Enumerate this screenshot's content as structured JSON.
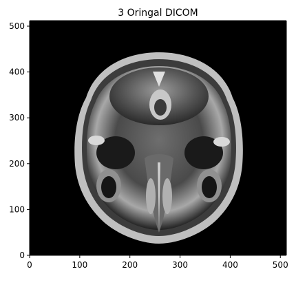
{
  "chart_data": {
    "type": "image",
    "title": "3  Oringal DICOM",
    "xlabel": "",
    "ylabel": "",
    "xlim": [
      0,
      512
    ],
    "ylim": [
      0,
      512
    ],
    "x_ticks": [
      0,
      100,
      200,
      300,
      400,
      500
    ],
    "y_ticks": [
      0,
      100,
      200,
      300,
      400,
      500
    ],
    "colormap": "gray",
    "image_description_colors": {
      "background": "#000000",
      "tissue_bright": "#e6e6e6",
      "tissue_mid": "#8a8a8a",
      "tissue_dark": "#2a2a2a"
    }
  }
}
